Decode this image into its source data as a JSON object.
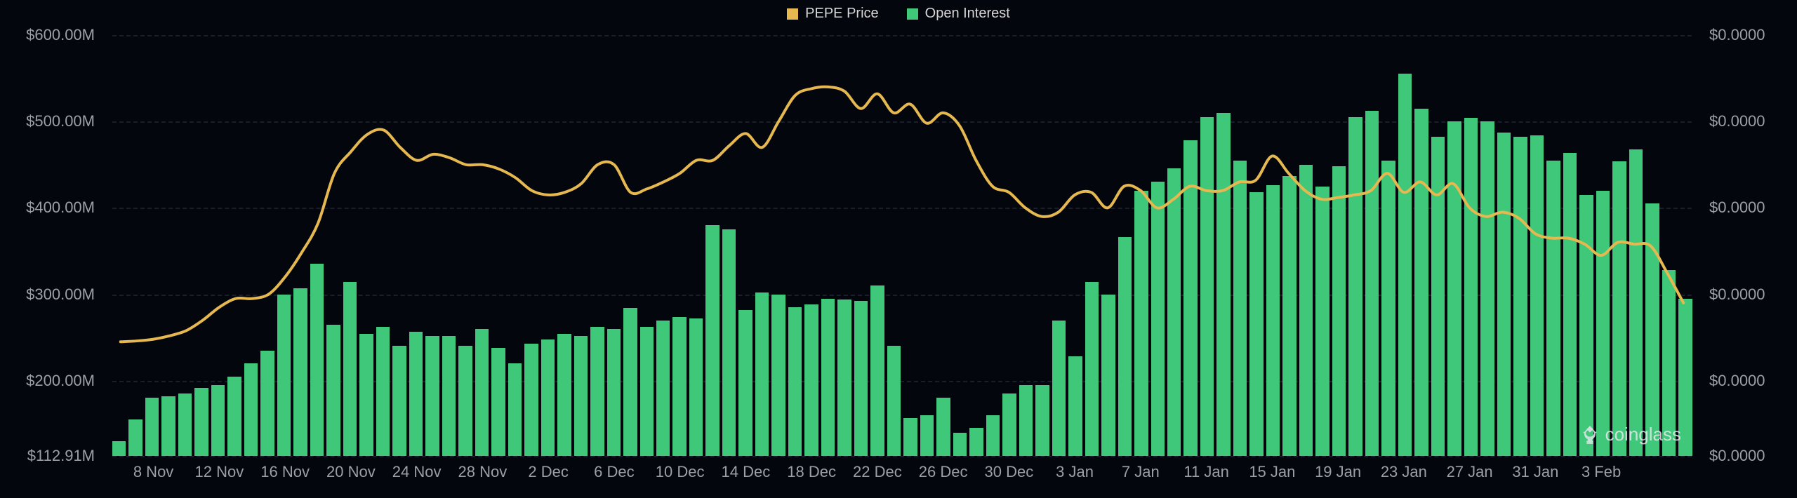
{
  "legend": {
    "price": {
      "label": "PEPE Price",
      "color": "#e6b850"
    },
    "oi": {
      "label": "Open Interest",
      "color": "#3fc77a"
    }
  },
  "chart": {
    "background": "#04060d",
    "grid_color": "#2a2f3a",
    "y_left": {
      "min": 112.91,
      "max": 600,
      "ticks": [
        {
          "v": 600.0,
          "label": "$600.00M"
        },
        {
          "v": 500.0,
          "label": "$500.00M"
        },
        {
          "v": 400.0,
          "label": "$400.00M"
        },
        {
          "v": 300.0,
          "label": "$300.00M"
        },
        {
          "v": 200.0,
          "label": "$200.00M"
        },
        {
          "v": 112.91,
          "label": "$112.91M"
        }
      ],
      "label_fontsize": 22,
      "label_color": "#9aa0a6"
    },
    "y_right": {
      "ticks": [
        {
          "v": 600.0,
          "label": "$0.0000"
        },
        {
          "v": 500.0,
          "label": "$0.0000"
        },
        {
          "v": 400.0,
          "label": "$0.0000"
        },
        {
          "v": 300.0,
          "label": "$0.0000"
        },
        {
          "v": 200.0,
          "label": "$0.0000"
        },
        {
          "v": 112.91,
          "label": "$0.0000"
        }
      ],
      "label_fontsize": 22,
      "label_color": "#9aa0a6"
    },
    "x_labels": [
      "8 Nov",
      "12 Nov",
      "16 Nov",
      "20 Nov",
      "24 Nov",
      "28 Nov",
      "2 Dec",
      "6 Dec",
      "10 Dec",
      "14 Dec",
      "18 Dec",
      "22 Dec",
      "26 Dec",
      "30 Dec",
      "3 Jan",
      "7 Jan",
      "11 Jan",
      "15 Jan",
      "19 Jan",
      "23 Jan",
      "27 Jan",
      "31 Jan",
      "3 Feb"
    ],
    "bar_color": "#3fc77a",
    "line_color": "#e6b850",
    "line_width": 4,
    "open_interest": [
      130,
      155,
      180,
      182,
      185,
      192,
      195,
      205,
      220,
      235,
      300,
      307,
      335,
      265,
      314,
      254,
      262,
      240,
      257,
      252,
      252,
      240,
      260,
      238,
      220,
      243,
      248,
      254,
      252,
      262,
      260,
      284,
      262,
      270,
      274,
      272,
      380,
      375,
      282,
      302,
      300,
      285,
      288,
      295,
      294,
      292,
      310,
      240,
      157,
      160,
      180,
      140,
      145,
      160,
      185,
      195,
      195,
      270,
      228,
      314,
      300,
      366,
      420,
      430,
      446,
      478,
      505,
      510,
      455,
      418,
      426,
      437,
      450,
      425,
      448,
      505,
      512,
      455,
      555,
      515,
      482,
      500,
      504,
      500,
      487,
      482,
      484,
      455,
      464,
      415,
      420,
      454,
      468,
      405,
      328,
      295
    ],
    "price": [
      245,
      246,
      248,
      252,
      258,
      270,
      285,
      295,
      295,
      300,
      320,
      348,
      382,
      440,
      465,
      485,
      490,
      470,
      455,
      462,
      458,
      450,
      450,
      445,
      435,
      420,
      415,
      418,
      428,
      450,
      450,
      418,
      422,
      430,
      440,
      455,
      455,
      472,
      486,
      470,
      500,
      530,
      538,
      540,
      535,
      515,
      532,
      510,
      520,
      498,
      510,
      495,
      455,
      425,
      418,
      400,
      390,
      395,
      415,
      418,
      400,
      425,
      420,
      400,
      410,
      425,
      420,
      420,
      430,
      432,
      460,
      440,
      420,
      410,
      412,
      415,
      420,
      440,
      418,
      430,
      415,
      428,
      400,
      390,
      395,
      388,
      370,
      365,
      365,
      358,
      345,
      360,
      358,
      356,
      325,
      290
    ]
  },
  "watermark": {
    "text": "coinglass"
  }
}
